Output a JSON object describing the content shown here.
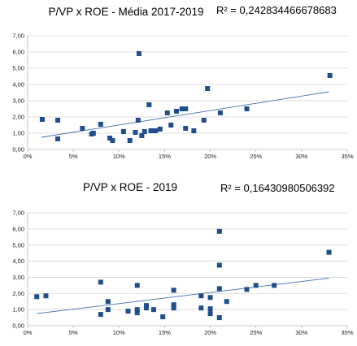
{
  "colors": {
    "point": "#1f4e8c",
    "trend": "#3f6fae",
    "grid": "#d4d4d4"
  },
  "chart_data": [
    {
      "type": "scatter",
      "title": "P/VP x ROE - Média 2017-2019",
      "r2_label": "R² = 0,242834466678683",
      "xlim": [
        0,
        0.35
      ],
      "ylim": [
        0,
        7
      ],
      "x_ticks": [
        "0%",
        "5%",
        "10%",
        "15%",
        "20%",
        "25%",
        "30%",
        "35%"
      ],
      "y_ticks": [
        "0,00",
        "1,00",
        "2,00",
        "3,00",
        "4,00",
        "5,00",
        "6,00",
        "7,00"
      ],
      "grid": true,
      "trendline": {
        "x": [
          0.015,
          0.33
        ],
        "y": [
          0.75,
          3.55
        ]
      },
      "points": [
        {
          "x": 0.016,
          "y": 1.85
        },
        {
          "x": 0.033,
          "y": 1.8
        },
        {
          "x": 0.033,
          "y": 0.65
        },
        {
          "x": 0.06,
          "y": 1.3
        },
        {
          "x": 0.07,
          "y": 0.95
        },
        {
          "x": 0.072,
          "y": 1.0
        },
        {
          "x": 0.08,
          "y": 1.55
        },
        {
          "x": 0.09,
          "y": 0.7
        },
        {
          "x": 0.093,
          "y": 0.55
        },
        {
          "x": 0.105,
          "y": 1.1
        },
        {
          "x": 0.112,
          "y": 0.55
        },
        {
          "x": 0.118,
          "y": 1.05
        },
        {
          "x": 0.121,
          "y": 1.8
        },
        {
          "x": 0.122,
          "y": 5.9
        },
        {
          "x": 0.125,
          "y": 0.85
        },
        {
          "x": 0.128,
          "y": 1.1
        },
        {
          "x": 0.133,
          "y": 2.75
        },
        {
          "x": 0.135,
          "y": 1.15
        },
        {
          "x": 0.14,
          "y": 1.15
        },
        {
          "x": 0.145,
          "y": 1.25
        },
        {
          "x": 0.153,
          "y": 2.25
        },
        {
          "x": 0.157,
          "y": 1.5
        },
        {
          "x": 0.163,
          "y": 2.35
        },
        {
          "x": 0.169,
          "y": 2.5
        },
        {
          "x": 0.173,
          "y": 2.5
        },
        {
          "x": 0.173,
          "y": 1.3
        },
        {
          "x": 0.182,
          "y": 1.15
        },
        {
          "x": 0.193,
          "y": 1.8
        },
        {
          "x": 0.197,
          "y": 3.75
        },
        {
          "x": 0.211,
          "y": 2.25
        },
        {
          "x": 0.24,
          "y": 2.5
        },
        {
          "x": 0.331,
          "y": 4.55
        }
      ]
    },
    {
      "type": "scatter",
      "title": "P/VP x ROE - 2019",
      "r2_label": "R² = 0,16430980506392",
      "xlim": [
        0,
        0.35
      ],
      "ylim": [
        0,
        7
      ],
      "x_ticks": [
        "0%",
        "5%",
        "10%",
        "15%",
        "20%",
        "25%",
        "30%",
        "35%"
      ],
      "y_ticks": [
        "0,00",
        "1,00",
        "2,00",
        "3,00",
        "4,00",
        "5,00",
        "6,00",
        "7,00"
      ],
      "grid": true,
      "trendline": {
        "x": [
          0.01,
          0.33
        ],
        "y": [
          0.75,
          2.95
        ]
      },
      "points": [
        {
          "x": 0.01,
          "y": 1.8
        },
        {
          "x": 0.02,
          "y": 1.85
        },
        {
          "x": 0.08,
          "y": 2.7
        },
        {
          "x": 0.08,
          "y": 0.7
        },
        {
          "x": 0.088,
          "y": 1.5
        },
        {
          "x": 0.088,
          "y": 1.0
        },
        {
          "x": 0.11,
          "y": 0.9
        },
        {
          "x": 0.12,
          "y": 2.5
        },
        {
          "x": 0.12,
          "y": 1.0
        },
        {
          "x": 0.12,
          "y": 0.8
        },
        {
          "x": 0.13,
          "y": 1.25
        },
        {
          "x": 0.13,
          "y": 1.1
        },
        {
          "x": 0.138,
          "y": 1.0
        },
        {
          "x": 0.148,
          "y": 0.55
        },
        {
          "x": 0.16,
          "y": 2.2
        },
        {
          "x": 0.16,
          "y": 1.3
        },
        {
          "x": 0.16,
          "y": 1.1
        },
        {
          "x": 0.19,
          "y": 1.85
        },
        {
          "x": 0.19,
          "y": 1.1
        },
        {
          "x": 0.2,
          "y": 1.75
        },
        {
          "x": 0.2,
          "y": 1.05
        },
        {
          "x": 0.2,
          "y": 0.75
        },
        {
          "x": 0.21,
          "y": 5.85
        },
        {
          "x": 0.21,
          "y": 3.75
        },
        {
          "x": 0.21,
          "y": 2.3
        },
        {
          "x": 0.21,
          "y": 0.5
        },
        {
          "x": 0.218,
          "y": 1.5
        },
        {
          "x": 0.24,
          "y": 2.25
        },
        {
          "x": 0.25,
          "y": 2.5
        },
        {
          "x": 0.27,
          "y": 2.5
        },
        {
          "x": 0.33,
          "y": 4.55
        }
      ]
    }
  ]
}
